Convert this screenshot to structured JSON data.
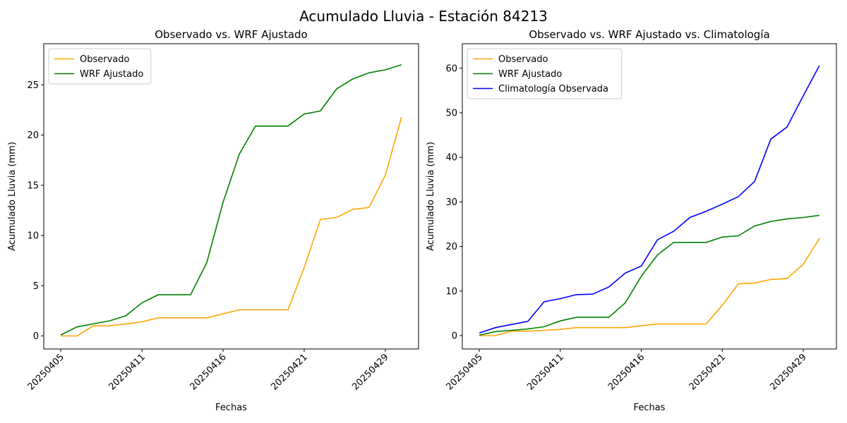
{
  "title": "Acumulado Lluvia - Estación 84213",
  "chart_data": [
    {
      "type": "line",
      "title": "Observado vs. WRF Ajustado",
      "xlabel": "Fechas",
      "ylabel": "Acumulado Lluvia (mm)",
      "categories": [
        "20250405",
        null,
        null,
        null,
        null,
        "20250411",
        null,
        null,
        null,
        null,
        "20250416",
        null,
        null,
        null,
        null,
        "20250421",
        null,
        null,
        null,
        null,
        "20250429",
        null
      ],
      "ylim": [
        -1.3,
        29.1
      ],
      "yticks": [
        0,
        5,
        10,
        15,
        20,
        25
      ],
      "legend": "upper left",
      "series": [
        {
          "name": "Observado",
          "color": "#ffa500",
          "values": [
            0,
            0,
            1.0,
            1.0,
            1.2,
            1.4,
            1.8,
            1.8,
            1.8,
            1.8,
            2.2,
            2.6,
            2.6,
            2.6,
            2.6,
            6.8,
            11.6,
            11.8,
            12.6,
            12.8,
            16.0,
            21.8
          ]
        },
        {
          "name": "WRF Ajustado",
          "color": "#008000",
          "values": [
            0.1,
            0.9,
            1.2,
            1.5,
            2.0,
            3.3,
            4.1,
            4.1,
            4.1,
            7.3,
            13.3,
            18.1,
            20.9,
            20.9,
            20.9,
            22.1,
            22.4,
            24.6,
            25.6,
            26.2,
            26.5,
            27.0
          ]
        }
      ]
    },
    {
      "type": "line",
      "title": "Observado vs. WRF Ajustado vs. Climatología",
      "xlabel": "Fechas",
      "ylabel": "Acumulado Lluvia (mm)",
      "categories": [
        "20250405",
        null,
        null,
        null,
        null,
        "20250411",
        null,
        null,
        null,
        null,
        "20250416",
        null,
        null,
        null,
        null,
        "20250421",
        null,
        null,
        null,
        null,
        "20250429",
        null
      ],
      "ylim": [
        -3.0,
        65.5
      ],
      "yticks": [
        0,
        10,
        20,
        30,
        40,
        50,
        60
      ],
      "legend": "upper left",
      "series": [
        {
          "name": "Observado",
          "color": "#ffa500",
          "values": [
            0,
            0,
            1.0,
            1.0,
            1.2,
            1.4,
            1.8,
            1.8,
            1.8,
            1.8,
            2.2,
            2.6,
            2.6,
            2.6,
            2.6,
            6.8,
            11.6,
            11.8,
            12.6,
            12.8,
            16.0,
            21.8
          ]
        },
        {
          "name": "WRF Ajustado",
          "color": "#008000",
          "values": [
            0.1,
            0.9,
            1.2,
            1.5,
            2.0,
            3.3,
            4.1,
            4.1,
            4.1,
            7.3,
            13.3,
            18.1,
            20.9,
            20.9,
            20.9,
            22.1,
            22.4,
            24.6,
            25.6,
            26.2,
            26.5,
            27.0
          ]
        },
        {
          "name": "Climatología Observada",
          "color": "#0000ff",
          "values": [
            0.6,
            1.8,
            2.5,
            3.2,
            7.6,
            8.3,
            9.2,
            9.3,
            10.9,
            14.0,
            15.6,
            21.5,
            23.4,
            26.5,
            27.9,
            29.5,
            31.2,
            34.6,
            44.1,
            46.8,
            53.8,
            60.6
          ]
        }
      ]
    }
  ]
}
